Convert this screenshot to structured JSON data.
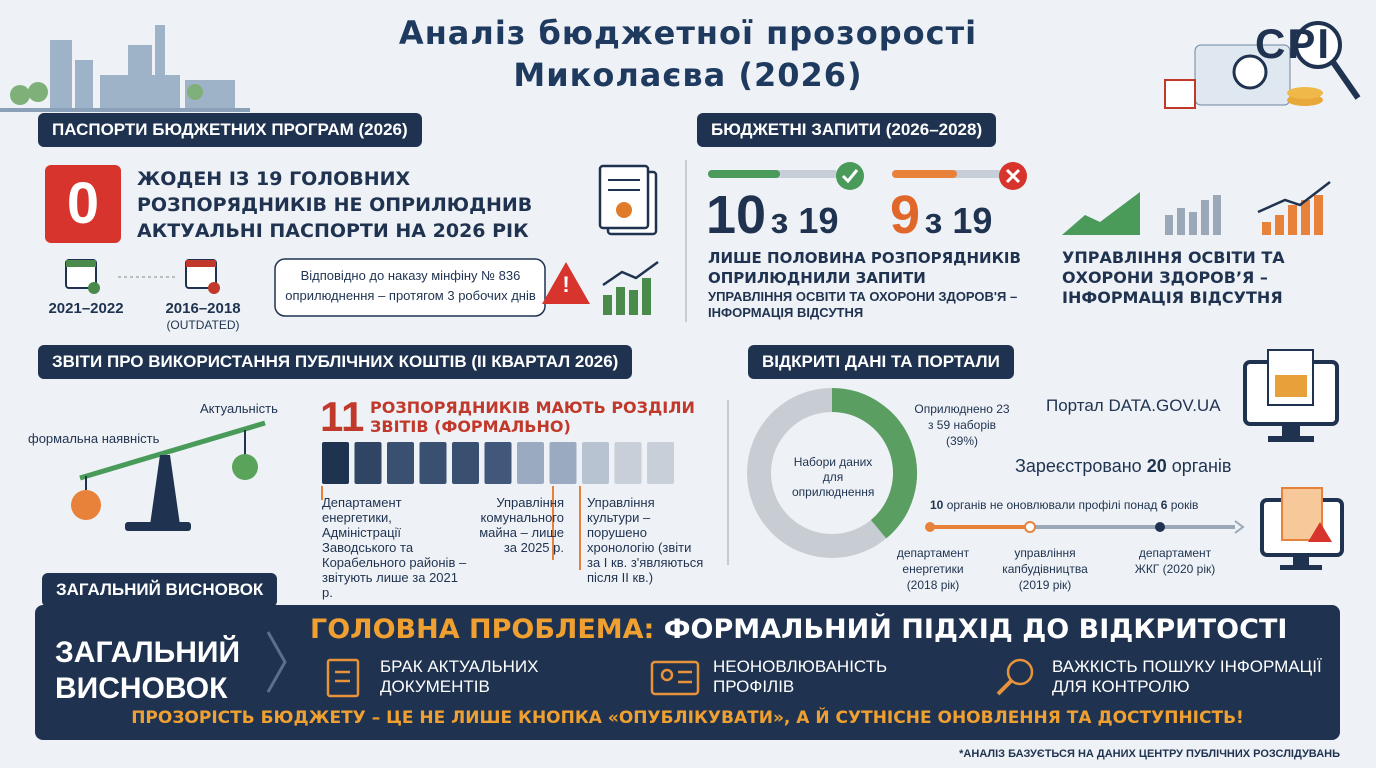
{
  "header": {
    "title_line1": "Аналіз бюджетної прозорості",
    "title_line2": "Миколаєва (2026)",
    "logo": "CPI"
  },
  "passports": {
    "heading": "ПАСПОРТИ БЮДЖЕТНИХ ПРОГРАМ (2026)",
    "big_number": "0",
    "statement": "ЖОДЕН ІЗ 19 ГОЛОВНИХ РОЗПОРЯДНИКІВ НЕ ОПРИЛЮДНИВ АКТУАЛЬНІ ПАСПОРТИ НА 2026 РІК",
    "periods": [
      {
        "label": "2021–2022"
      },
      {
        "label": "2016–2018",
        "note": "(OUTDATED)"
      }
    ],
    "note": "Відповідно до наказу мінфіну № 836 оприлюднення – протягом 3 робочих днів"
  },
  "requests": {
    "heading": "БЮДЖЕТНІ ЗАПИТИ (2026–2028)",
    "stats": [
      {
        "number": "10",
        "of": "з 19"
      },
      {
        "number": "9",
        "of": "з 19"
      }
    ],
    "summary": "ЛИШЕ ПОЛОВИНА РОЗПОРЯДНИКІВ ОПРИЛЮДНИЛИ ЗАПИТИ",
    "detail": "УПРАВЛІННЯ ОСВІТИ ТА ОХОРОНИ ЗДОРОВ'Я – ІНФОРМАЦІЯ ВІДСУТНЯ",
    "highlight": "УПРАВЛІННЯ ОСВІТИ ТА ОХОРОНИ ЗДОРОВ’Я – ІНФОРМАЦІЯ ВІДСУТНЯ"
  },
  "reports": {
    "heading": "ЗВІТИ ПРО ВИКОРИСТАННЯ ПУБЛІЧНИХ КОШТІВ (ІІ КВАРТАЛ 2026)",
    "scale_high": "Актуальність",
    "scale_low": "формальна наявність",
    "count": "11",
    "count_text": "РОЗПОРЯДНИКІВ МАЮТЬ РОЗДІЛИ ЗВІТІВ (ФОРМАЛЬНО)",
    "notes": [
      "Департамент енергетики, Адміністрації Заводського та Корабельного районів – звітують лише за 2021 р.",
      "Управління комунального майна – лише за 2025 р.",
      "Управління культури – порушено хронологію (звіти за I кв. з'являються після II кв.)"
    ]
  },
  "open_data": {
    "heading": "ВІДКРИТІ ДАНІ ТА ПОРТАЛИ",
    "donut_center": "Набори даних для оприлюднення",
    "published_label": "Оприлюднено 23 з 59 наборів (39%)",
    "donut": {
      "published": 23,
      "total": 59
    },
    "portal": "Портал DATA.GOV.UA",
    "registered": "Зареєстровано",
    "registered_count": "20",
    "registered_suffix": "органів",
    "outdated_count": "10",
    "outdated_text": "органів не оновлювали профілі понад",
    "outdated_years": "6",
    "outdated_suffix": "років",
    "timeline": [
      "департамент енергетики (2018 рік)",
      "управління капбудівництва (2019 рік)",
      "департамент ЖКГ (2020 рік)"
    ]
  },
  "conclusion": {
    "section_label": "ЗАГАЛЬНИЙ ВИСНОВОК",
    "side_title": "ЗАГАЛЬНИЙ ВИСНОВОК",
    "problem_prefix": "ГОЛОВНА ПРОБЛЕМА:",
    "problem": "ФОРМАЛЬНИЙ ПІДХІД ДО ВІДКРИТОСТІ",
    "items": [
      "БРАК АКТУАЛЬНИХ ДОКУМЕНТІВ",
      "НЕОНОВЛЮВАНІСТЬ ПРОФІЛІВ",
      "ВАЖКІСТЬ ПОШУКУ ІНФОРМАЦІЇ ДЛЯ КОНТРОЛЮ"
    ],
    "bottom_line": "ПРОЗОРІСТЬ БЮДЖЕТУ – ЦЕ НЕ ЛИШЕ КНОПКА «ОПУБЛІКУВАТИ», А Й СУТНІСНЕ ОНОВЛЕННЯ ТА ДОСТУПНІСТЬ!"
  },
  "footnote": "*АНАЛІЗ БАЗУЄТЬСЯ НА ДАНИХ ЦЕНТРУ ПУБЛІЧНИХ РОЗСЛІДУВАНЬ"
}
